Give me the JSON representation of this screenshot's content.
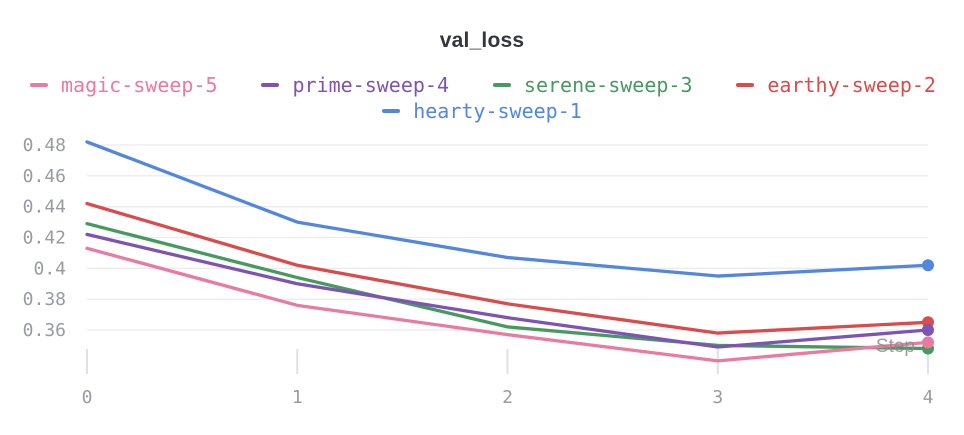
{
  "panel": {
    "title": "val_loss",
    "x_axis_label": "Step"
  },
  "chart_data": {
    "type": "line",
    "title": "val_loss",
    "xlabel": "Step",
    "ylabel": "",
    "x": [
      0,
      1,
      2,
      3,
      4
    ],
    "xlim": [
      0,
      4
    ],
    "ylim": [
      0.335,
      0.49
    ],
    "grid": true,
    "legend_position": "top",
    "series": [
      {
        "name": "magic-sweep-5",
        "color": "#E87B9F",
        "values": [
          0.413,
          0.376,
          0.357,
          0.34,
          0.352
        ]
      },
      {
        "name": "prime-sweep-4",
        "color": "#7D54B2",
        "values": [
          0.422,
          0.39,
          0.368,
          0.349,
          0.36
        ]
      },
      {
        "name": "serene-sweep-3",
        "color": "#479A5F",
        "values": [
          0.429,
          0.394,
          0.362,
          0.35,
          0.348
        ]
      },
      {
        "name": "earthy-sweep-2",
        "color": "#DA4C4C",
        "values": [
          0.442,
          0.402,
          0.377,
          0.358,
          0.365
        ]
      },
      {
        "name": "hearty-sweep-1",
        "color": "#5387DD",
        "values": [
          0.482,
          0.43,
          0.407,
          0.395,
          0.402
        ]
      }
    ],
    "yticks": [
      0.48,
      0.46,
      0.44,
      0.42,
      0.4,
      0.38,
      0.36
    ],
    "ytick_labels": [
      "0.48",
      "0.46",
      "0.44",
      "0.42",
      "0.4",
      "0.38",
      "0.36"
    ],
    "xticks": [
      0,
      1,
      2,
      3,
      4
    ],
    "xtick_labels": [
      "0",
      "1",
      "2",
      "3",
      "4"
    ]
  },
  "colors": {
    "grid_line": "#ececec",
    "tick_mark": "#e1e1e4",
    "tick_label": "#999ba3",
    "axis_label": "#8c8c8c",
    "title_text": "#33373d",
    "background": "#ffffff"
  }
}
